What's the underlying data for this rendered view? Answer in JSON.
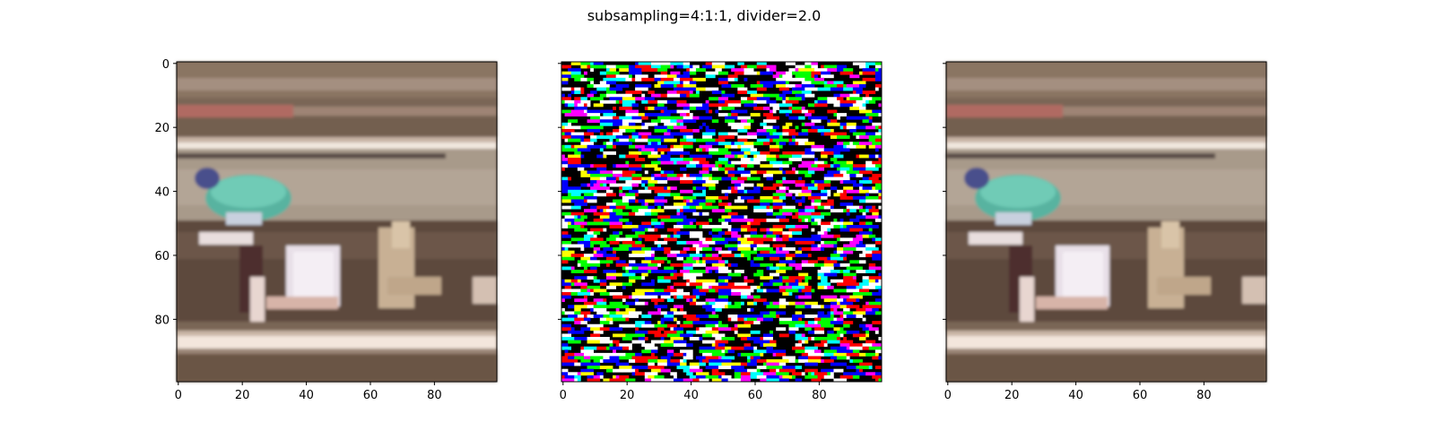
{
  "figure": {
    "title": "subsampling=4:1:1, divider=2.0"
  },
  "chart_data": [
    {
      "type": "heatmap",
      "panel": "left",
      "image_size": [
        100,
        100
      ],
      "xlim": [
        -0.5,
        99.5
      ],
      "ylim": [
        99.5,
        -0.5
      ],
      "x_ticks": [
        0,
        20,
        40,
        60,
        80
      ],
      "y_ticks": [
        0,
        20,
        40,
        60,
        80
      ],
      "x_tick_labels": [
        "0",
        "20",
        "40",
        "60",
        "80"
      ],
      "y_tick_labels": [
        "0",
        "20",
        "40",
        "60",
        "80"
      ],
      "y_tick_labels_visible": true,
      "content": "photo"
    },
    {
      "type": "heatmap",
      "panel": "middle",
      "image_size": [
        100,
        100
      ],
      "xlim": [
        -0.5,
        99.5
      ],
      "ylim": [
        99.5,
        -0.5
      ],
      "x_ticks": [
        0,
        20,
        40,
        60,
        80
      ],
      "y_ticks": [
        0,
        20,
        40,
        60,
        80
      ],
      "x_tick_labels": [
        "0",
        "20",
        "40",
        "60",
        "80"
      ],
      "y_tick_labels": [
        "0",
        "20",
        "40",
        "60",
        "80"
      ],
      "y_tick_labels_visible": false,
      "content": "noise",
      "palette": [
        "#000000",
        "#ffffff",
        "#ff0000",
        "#00ff00",
        "#0000ff",
        "#00ffff",
        "#ff00ff",
        "#ffff00"
      ]
    },
    {
      "type": "heatmap",
      "panel": "right",
      "image_size": [
        100,
        100
      ],
      "xlim": [
        -0.5,
        99.5
      ],
      "ylim": [
        99.5,
        -0.5
      ],
      "x_ticks": [
        0,
        20,
        40,
        60,
        80
      ],
      "y_ticks": [
        0,
        20,
        40,
        60,
        80
      ],
      "x_tick_labels": [
        "0",
        "20",
        "40",
        "60",
        "80"
      ],
      "y_tick_labels": [
        "0",
        "20",
        "40",
        "60",
        "80"
      ],
      "y_tick_labels_visible": false,
      "content": "photo"
    }
  ]
}
